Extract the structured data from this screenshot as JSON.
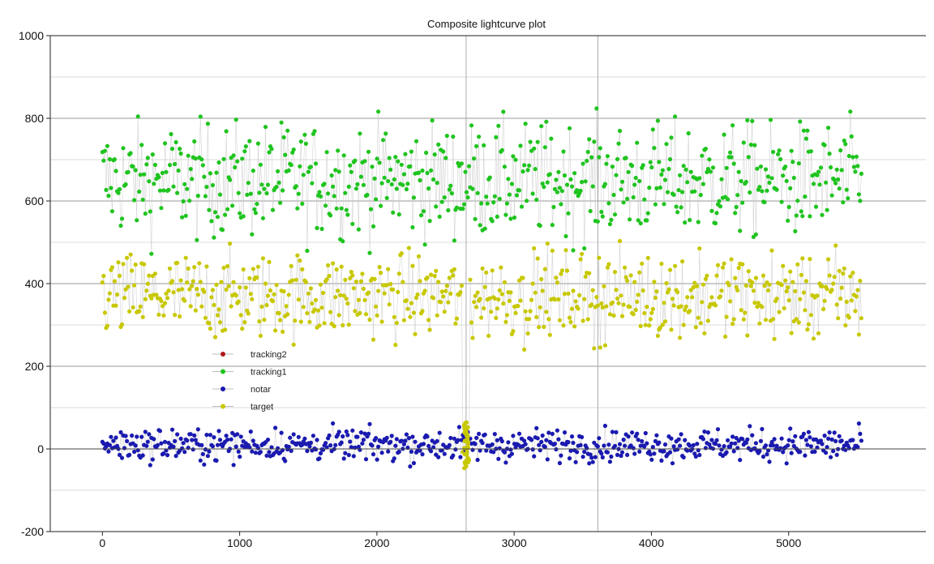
{
  "chart_data": {
    "type": "scatter",
    "title": "Composite lightcurve plot",
    "xlabel": "",
    "ylabel": "",
    "xlim": [
      -380,
      6000
    ],
    "ylim": [
      -200,
      1000
    ],
    "x_ticks": [
      0,
      1000,
      2000,
      3000,
      4000,
      5000
    ],
    "x_tick_labels": [
      "0",
      "1000",
      "2000",
      "3000",
      "4000",
      "5000"
    ],
    "y_ticks": [
      -200,
      0,
      200,
      400,
      600,
      800,
      1000
    ],
    "y_tick_labels": [
      "-200",
      "0",
      "200",
      "400",
      "600",
      "800",
      "1000"
    ],
    "grid": true,
    "legend_position": "middle-left",
    "connector_color": "#c8c8c8",
    "series": [
      {
        "name": "tracking2",
        "color": "#b01818",
        "x_range": [
          0,
          5530
        ],
        "mean": null,
        "spread": null
      },
      {
        "name": "tracking1",
        "color": "#1fc41f",
        "x_range": [
          0,
          5530
        ],
        "mean": 650,
        "spread": 160
      },
      {
        "name": "notar",
        "color": "#1a1ab0",
        "x_range": [
          0,
          5530
        ],
        "mean": 10,
        "spread": 45
      },
      {
        "name": "target",
        "color": "#c8c800",
        "x_range": [
          0,
          5530
        ],
        "mean": 370,
        "spread": 120
      }
    ],
    "gap_region": {
      "x": [
        2620,
        2680
      ],
      "note_values": {
        "target_min": -50,
        "target_max": 70
      }
    },
    "annotation_vlines": [
      2650,
      3610
    ]
  }
}
